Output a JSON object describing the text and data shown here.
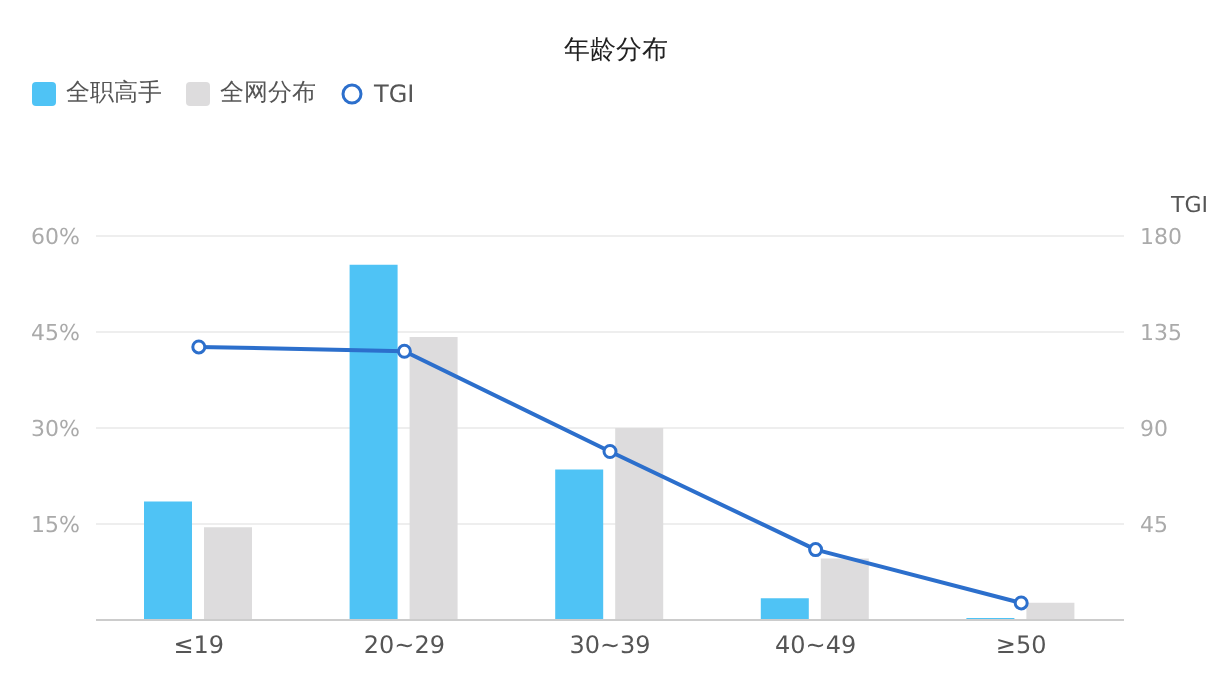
{
  "chart_data": {
    "type": "bar",
    "title": "年龄分布",
    "y2label": "TGI",
    "categories": [
      "≤19",
      "20~29",
      "30~39",
      "40~49",
      "≥50"
    ],
    "series": [
      {
        "name": "全职高手",
        "color": "#4fc3f5",
        "values": [
          18.5,
          55.5,
          23.5,
          3.4,
          0.3
        ]
      },
      {
        "name": "全网分布",
        "color": "#dddcdd",
        "values": [
          14.5,
          44.2,
          30,
          9.6,
          2.7
        ]
      },
      {
        "name": "TGI",
        "type": "line",
        "axis": "y2",
        "color": "#2c6fcc",
        "values": [
          128,
          126,
          79,
          33,
          8
        ]
      }
    ],
    "ylim": [
      0,
      60
    ],
    "yticks": [
      {
        "value": 15,
        "label": "15%"
      },
      {
        "value": 30,
        "label": "30%"
      },
      {
        "value": 45,
        "label": "45%"
      },
      {
        "value": 60,
        "label": "60%"
      }
    ],
    "y2lim": [
      0,
      180
    ],
    "y2ticks": [
      45,
      90,
      135,
      180
    ],
    "grid": "y",
    "legend": "top left",
    "marker": "circle"
  }
}
